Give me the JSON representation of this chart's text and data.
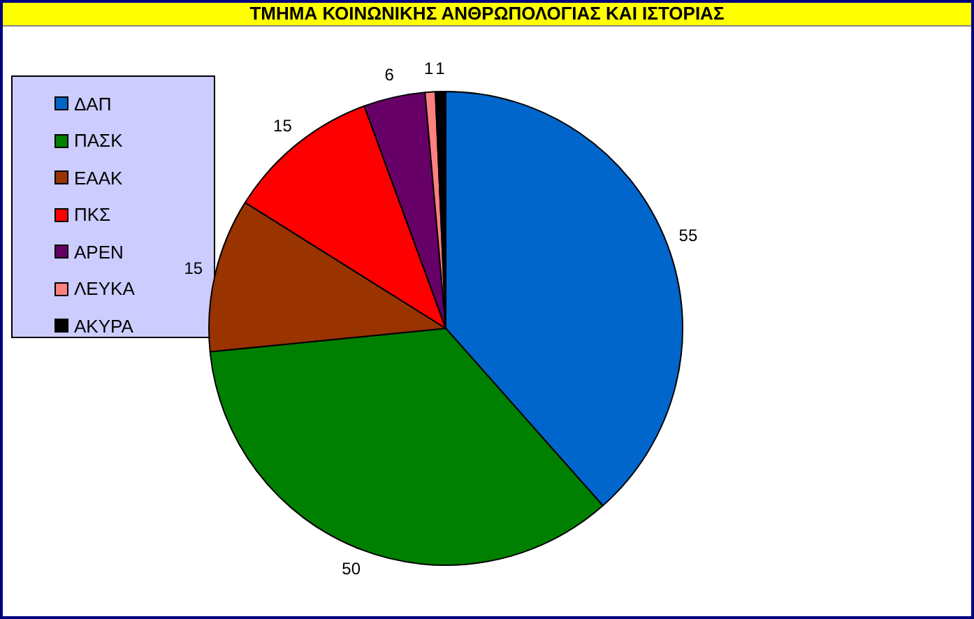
{
  "chart_data": {
    "type": "pie",
    "title": "ΤΜΗΜΑ ΚΟΙΝΩΝΙΚΗΣ ΑΝΘΡΩΠΟΛΟΓΙΑΣ ΚΑΙ ΙΣΤΟΡΙΑΣ",
    "categories": [
      "ΔΑΠ",
      "ΠΑΣΚ",
      "ΕΑΑΚ",
      "ΠΚΣ",
      "ΑΡΕΝ",
      "ΛΕΥΚΑ",
      "ΑΚΥΡΑ"
    ],
    "values": [
      55,
      50,
      15,
      15,
      6,
      1,
      1
    ],
    "colors": [
      "#0066cc",
      "#008000",
      "#993300",
      "#ff0000",
      "#660066",
      "#ff8080",
      "#000000"
    ],
    "data_labels": true,
    "legend": "left"
  }
}
